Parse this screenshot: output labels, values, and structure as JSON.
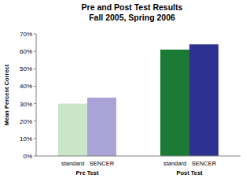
{
  "chart_data": {
    "type": "bar",
    "title": "Pre and Post Test Results",
    "subtitle": "Fall 2005, Spring 2006",
    "y_label": "Mean Percent Correct",
    "categories": [
      "Pre Test",
      "Post Test"
    ],
    "series": [
      {
        "name": "standard",
        "colors": [
          "#c9e6c9",
          "#1b7a34"
        ],
        "values": [
          30,
          61
        ]
      },
      {
        "name": "SENCER",
        "colors": [
          "#aaa3d8",
          "#2e3192"
        ],
        "values": [
          33.5,
          64
        ]
      }
    ],
    "ylim": [
      0,
      70
    ],
    "yticks": [
      {
        "value": 0,
        "label": "0%"
      },
      {
        "value": 10,
        "label": "10%"
      },
      {
        "value": 20,
        "label": "20%"
      },
      {
        "value": 30,
        "label": "30%"
      },
      {
        "value": 40,
        "label": "40%"
      },
      {
        "value": 50,
        "label": "50%"
      },
      {
        "value": 60,
        "label": "60%"
      },
      {
        "value": 70,
        "label": "70%"
      }
    ],
    "grid": false
  }
}
